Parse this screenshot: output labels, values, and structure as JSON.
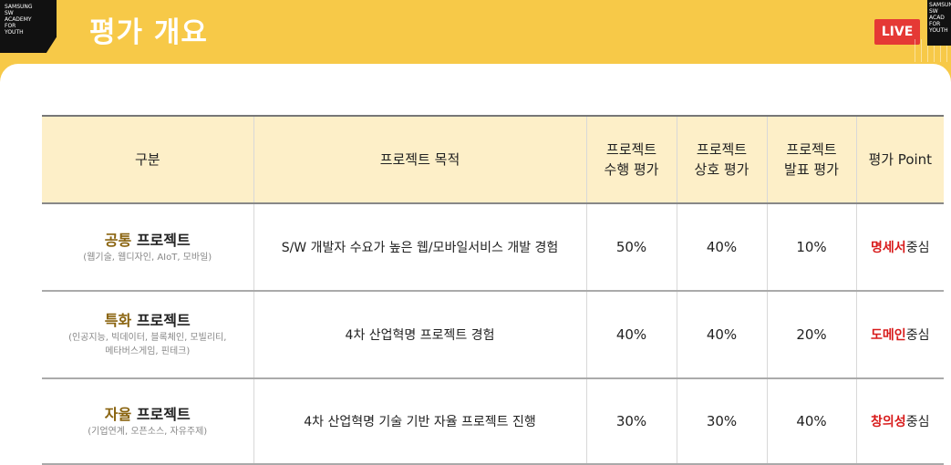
{
  "header": {
    "logo_text": "SAMSUNG SW ACADEMY FOR YOUTH",
    "title": "평가 개요",
    "live_label": "LIVE"
  },
  "table": {
    "headers": {
      "category": "구분",
      "purpose": "프로젝트 목적",
      "execution": [
        "프로젝트",
        "수행 평가"
      ],
      "mutual": [
        "프로젝트",
        "상호 평가"
      ],
      "presentation": [
        "프로젝트",
        "발표 평가"
      ],
      "point": "평가 Point"
    },
    "rows": [
      {
        "category_highlight": "공통",
        "category_rest": " 프로젝트",
        "category_sub": [
          "(웹기술, 웹디자인, AIoT, 모바일)"
        ],
        "purpose": "S/W 개발자 수요가 높은 웹/모바일서비스 개발  경험",
        "execution": "50%",
        "mutual": "40%",
        "presentation": "10%",
        "point_highlight": "명세서",
        "point_rest": "중심"
      },
      {
        "category_highlight": "특화",
        "category_rest": " 프로젝트",
        "category_sub": [
          "(인공지능, 빅데이터, 블록체인, 모빌리티,",
          "메타버스게임, 핀테크)"
        ],
        "purpose": "4차 산업혁명 프로젝트 경험",
        "execution": "40%",
        "mutual": "40%",
        "presentation": "20%",
        "point_highlight": "도메인",
        "point_rest": "중심"
      },
      {
        "category_highlight": "자율",
        "category_rest": " 프로젝트",
        "category_sub": [
          "(기업연계, 오픈소스, 자유주제)"
        ],
        "purpose": "4차 산업혁명 기술 기반 자율 프로젝트 진행",
        "execution": "30%",
        "mutual": "30%",
        "presentation": "40%",
        "point_highlight": "창의성",
        "point_rest": "중심"
      }
    ]
  },
  "colors": {
    "background_yellow": "#f7c948",
    "header_row": "#fdefc8",
    "category_highlight": "#8a6410",
    "point_highlight": "#d81b1b",
    "live_badge": "#e53935"
  }
}
